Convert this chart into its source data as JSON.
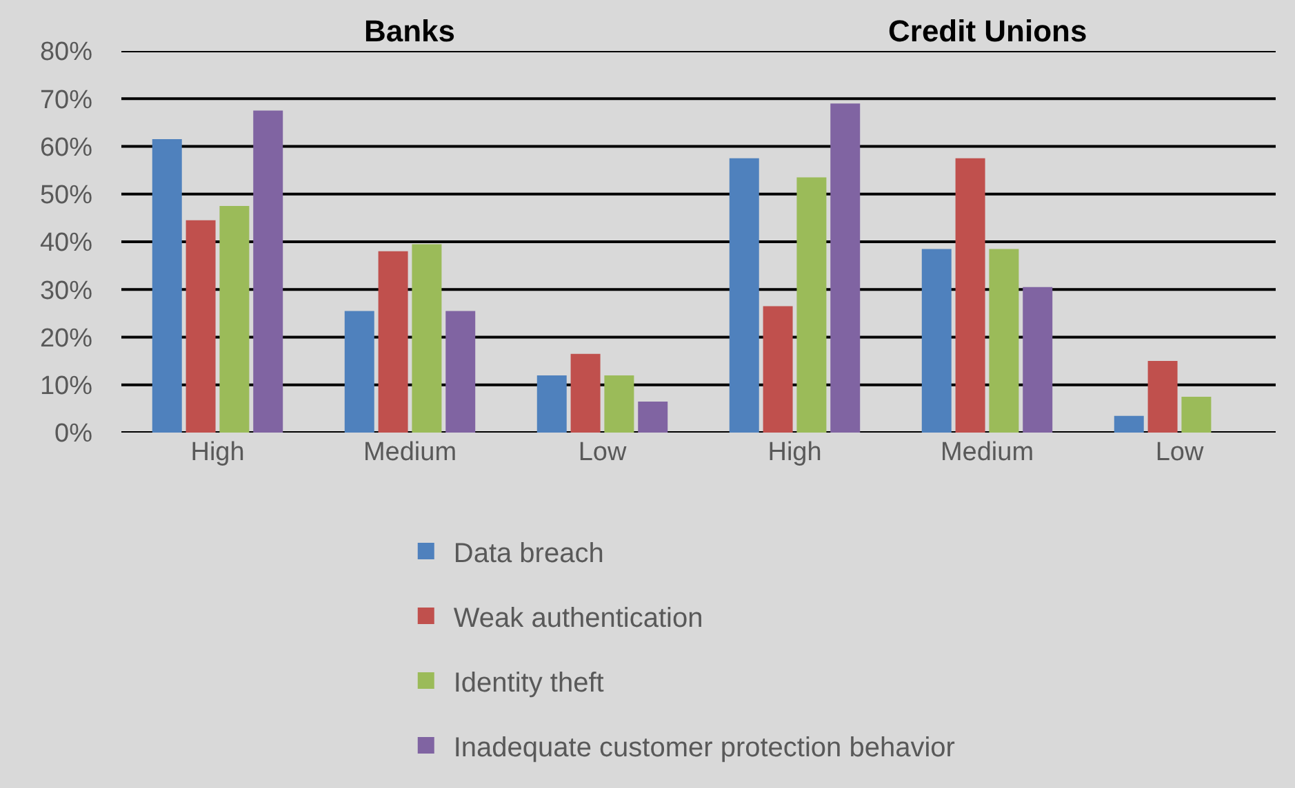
{
  "chart_data": {
    "type": "bar",
    "categories": [
      "High",
      "Medium",
      "Low",
      "High",
      "Medium",
      "Low"
    ],
    "series": [
      {
        "name": "Data breach",
        "color": "#4f81bd",
        "values": [
          61.5,
          25.5,
          12,
          57.5,
          38.5,
          3.5
        ]
      },
      {
        "name": "Weak authentication",
        "color": "#c0504d",
        "values": [
          44.5,
          38,
          16.5,
          26.5,
          57.5,
          15
        ]
      },
      {
        "name": "Identity theft",
        "color": "#9bbb59",
        "values": [
          47.5,
          39.5,
          12,
          53.5,
          38.5,
          7.5
        ]
      },
      {
        "name": "Inadequate customer protection behavior",
        "color": "#8064a2",
        "values": [
          67.5,
          25.5,
          6.5,
          69,
          30.5,
          0
        ]
      }
    ],
    "annotations": [
      "Banks",
      "Credit Unions"
    ],
    "ylim": [
      0,
      80
    ],
    "yticks": [
      {
        "value": 0,
        "label": "0%"
      },
      {
        "value": 10,
        "label": "10%"
      },
      {
        "value": 20,
        "label": "20%"
      },
      {
        "value": 30,
        "label": "30%"
      },
      {
        "value": 40,
        "label": "40%"
      },
      {
        "value": 50,
        "label": "50%"
      },
      {
        "value": 60,
        "label": "60%"
      },
      {
        "value": 70,
        "label": "70%"
      },
      {
        "value": 80,
        "label": "80%"
      }
    ],
    "grid": "y",
    "legend": "bottom"
  }
}
